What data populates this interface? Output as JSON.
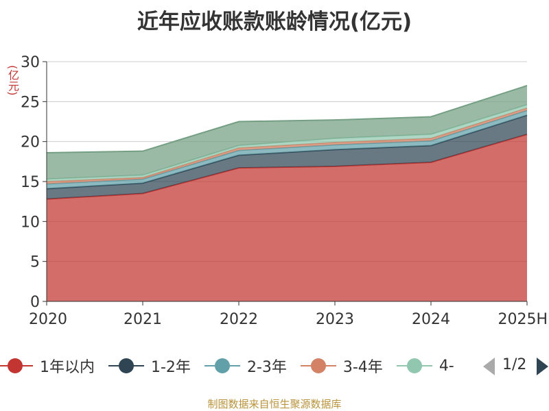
{
  "chart_data": {
    "type": "area",
    "stacked": true,
    "title": "近年应收账款账龄情况(亿元)",
    "ylabel": "(亿元)",
    "categories": [
      "2020",
      "2021",
      "2022",
      "2023",
      "2024",
      "2025H"
    ],
    "ylim": [
      0,
      30
    ],
    "yticks": [
      0,
      5,
      10,
      15,
      20,
      25,
      30
    ],
    "grid": true,
    "series": [
      {
        "name": "1年以内",
        "color": "#c23531",
        "values": [
          12.8,
          13.5,
          16.7,
          16.9,
          17.4,
          20.9
        ]
      },
      {
        "name": "1-2年",
        "color": "#2f4554",
        "values": [
          1.3,
          1.3,
          1.6,
          2.1,
          2.1,
          2.4
        ]
      },
      {
        "name": "2-3年",
        "color": "#61a0a8",
        "values": [
          0.6,
          0.5,
          0.6,
          0.6,
          0.6,
          0.6
        ]
      },
      {
        "name": "3-4年",
        "color": "#d48265",
        "values": [
          0.3,
          0.2,
          0.3,
          0.3,
          0.3,
          0.3
        ]
      },
      {
        "name": "4-",
        "color": "#91c7ae",
        "values": [
          0.3,
          0.3,
          0.3,
          0.5,
          0.5,
          0.4
        ]
      },
      {
        "color": "#749f83",
        "values": [
          3.3,
          3.0,
          3.0,
          2.3,
          2.2,
          2.4
        ]
      }
    ],
    "legend": {
      "position": "bottom",
      "page": "1/2"
    }
  },
  "source": "制图数据来自恒生聚源数据库"
}
